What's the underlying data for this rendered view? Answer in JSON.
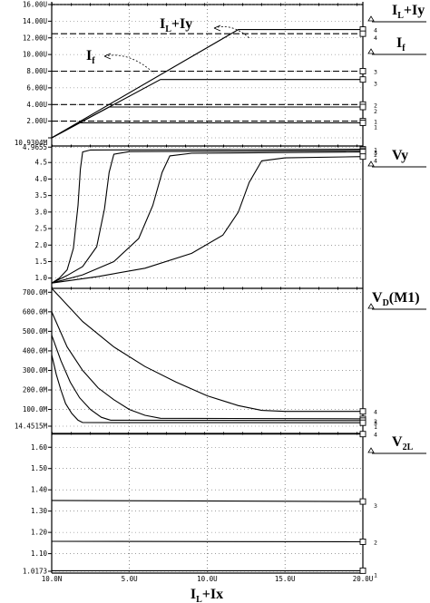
{
  "chart_data": {
    "type": "line",
    "xlabel": "I_L+Ix",
    "x_axis": {
      "range": [
        1e-08,
        2e-05
      ],
      "ticks": [
        {
          "v": 1e-08,
          "label": "10.0N"
        },
        {
          "v": 5e-06,
          "label": "5.0U"
        },
        {
          "v": 1e-05,
          "label": "10.0U"
        },
        {
          "v": 1.5e-05,
          "label": "15.0U"
        },
        {
          "v": 2e-05,
          "label": "20.0U"
        }
      ]
    },
    "panels": [
      {
        "id": "current",
        "labels": [
          {
            "main": "I",
            "sub": "L",
            "rest": "+Iy"
          },
          {
            "main": "I",
            "sub": "f",
            "rest": ""
          }
        ],
        "annotations": [
          {
            "main": "I",
            "sub": "L",
            "rest": "+Iy"
          },
          {
            "main": "I",
            "sub": "f",
            "rest": ""
          }
        ],
        "ylim": [
          0,
          1.6e-05
        ],
        "yticks": [
          {
            "v": 0,
            "label": ""
          },
          {
            "v": 2e-06,
            "label": "2.00U"
          },
          {
            "v": 4e-06,
            "label": "4.00U"
          },
          {
            "v": 6e-06,
            "label": "6.00U"
          },
          {
            "v": 8e-06,
            "label": "8.00U"
          },
          {
            "v": 1e-05,
            "label": "10.00U"
          },
          {
            "v": 1.2e-05,
            "label": "12.00U"
          },
          {
            "v": 1.4e-05,
            "label": "14.00U"
          },
          {
            "v": 1.6e-05,
            "label": "16.00U"
          }
        ],
        "series": [
          {
            "marker": "4",
            "style": "solid",
            "points": [
              [
                1e-08,
                0
              ],
              [
                1.2e-05,
                1.3e-05
              ],
              [
                2e-05,
                1.3e-05
              ]
            ]
          },
          {
            "marker": "4",
            "style": "dashed",
            "points": [
              [
                1e-08,
                1.25e-05
              ],
              [
                2e-05,
                1.25e-05
              ]
            ]
          },
          {
            "marker": "3",
            "style": "dashed",
            "points": [
              [
                1e-08,
                8e-06
              ],
              [
                2e-05,
                8e-06
              ]
            ]
          },
          {
            "marker": "3",
            "style": "solid",
            "points": [
              [
                1e-08,
                0
              ],
              [
                7e-06,
                7e-06
              ],
              [
                2e-05,
                7e-06
              ]
            ]
          },
          {
            "marker": "2",
            "style": "dashed",
            "points": [
              [
                1e-08,
                4e-06
              ],
              [
                2e-05,
                4e-06
              ]
            ]
          },
          {
            "marker": "2",
            "style": "solid",
            "points": [
              [
                1e-08,
                0
              ],
              [
                3.7e-06,
                3.7e-06
              ],
              [
                2e-05,
                3.7e-06
              ]
            ]
          },
          {
            "marker": "1",
            "style": "dashed",
            "points": [
              [
                1e-08,
                2e-06
              ],
              [
                2e-05,
                2e-06
              ]
            ]
          },
          {
            "marker": "1",
            "style": "solid",
            "points": [
              [
                1e-08,
                0
              ],
              [
                1.8e-06,
                1.8e-06
              ],
              [
                2e-05,
                1.8e-06
              ]
            ]
          }
        ]
      },
      {
        "id": "vy",
        "labels": [
          {
            "main": "Vy",
            "sub": "",
            "rest": ""
          }
        ],
        "ylim": [
          0.8,
          5.0
        ],
        "yticks": [
          {
            "v": 1.0,
            "label": "1.0"
          },
          {
            "v": 1.5,
            "label": "1.5"
          },
          {
            "v": 2.0,
            "label": "2.0"
          },
          {
            "v": 2.5,
            "label": "2.5"
          },
          {
            "v": 3.0,
            "label": "3.0"
          },
          {
            "v": 3.5,
            "label": "3.5"
          },
          {
            "v": 4.0,
            "label": "4.0"
          },
          {
            "v": 4.5,
            "label": "4.5"
          },
          {
            "v": 4.9655,
            "label": "4.9655"
          }
        ],
        "extra_label": "10.9304M",
        "series": [
          {
            "marker": "1",
            "points": [
              [
                1e-08,
                0.85
              ],
              [
                5e-07,
                1.0
              ],
              [
                1e-06,
                1.25
              ],
              [
                1.4e-06,
                1.9
              ],
              [
                1.7e-06,
                3.2
              ],
              [
                1.85e-06,
                4.3
              ],
              [
                2e-06,
                4.82
              ],
              [
                2.5e-06,
                4.88
              ],
              [
                2e-05,
                4.9
              ]
            ]
          },
          {
            "marker": "2",
            "points": [
              [
                1e-08,
                0.85
              ],
              [
                1e-06,
                1.08
              ],
              [
                2e-06,
                1.35
              ],
              [
                2.9e-06,
                1.95
              ],
              [
                3.4e-06,
                3.1
              ],
              [
                3.7e-06,
                4.2
              ],
              [
                4e-06,
                4.75
              ],
              [
                5e-06,
                4.83
              ],
              [
                2e-05,
                4.86
              ]
            ]
          },
          {
            "marker": "3",
            "points": [
              [
                1e-08,
                0.85
              ],
              [
                2e-06,
                1.1
              ],
              [
                4e-06,
                1.5
              ],
              [
                5.6e-06,
                2.2
              ],
              [
                6.5e-06,
                3.2
              ],
              [
                7.1e-06,
                4.2
              ],
              [
                7.6e-06,
                4.7
              ],
              [
                9e-06,
                4.78
              ],
              [
                2e-05,
                4.82
              ]
            ]
          },
          {
            "marker": "4",
            "points": [
              [
                1e-08,
                0.85
              ],
              [
                3e-06,
                1.05
              ],
              [
                6e-06,
                1.3
              ],
              [
                9e-06,
                1.75
              ],
              [
                1.1e-05,
                2.3
              ],
              [
                1.2e-05,
                3.0
              ],
              [
                1.27e-05,
                3.9
              ],
              [
                1.35e-05,
                4.55
              ],
              [
                1.5e-05,
                4.64
              ],
              [
                2e-05,
                4.68
              ]
            ]
          }
        ]
      },
      {
        "id": "vd",
        "labels": [
          {
            "main": "V",
            "sub": "D",
            "rest": "(M1)"
          }
        ],
        "ylim": [
          0.0144515,
          0.72
        ],
        "yticks": [
          {
            "v": 0.0144515,
            "label": "14.4515M"
          },
          {
            "v": 0.1,
            "label": "100.0M"
          },
          {
            "v": 0.2,
            "label": "200.0M"
          },
          {
            "v": 0.3,
            "label": "300.0M"
          },
          {
            "v": 0.4,
            "label": "400.0M"
          },
          {
            "v": 0.5,
            "label": "500.0M"
          },
          {
            "v": 0.6,
            "label": "600.0M"
          },
          {
            "v": 0.7,
            "label": "700.0M"
          }
        ],
        "series": [
          {
            "marker": "4",
            "points": [
              [
                1e-08,
                0.72
              ],
              [
                2e-06,
                0.55
              ],
              [
                4e-06,
                0.42
              ],
              [
                6e-06,
                0.32
              ],
              [
                8e-06,
                0.24
              ],
              [
                1e-05,
                0.17
              ],
              [
                1.2e-05,
                0.12
              ],
              [
                1.35e-05,
                0.095
              ],
              [
                1.5e-05,
                0.09
              ],
              [
                2e-05,
                0.09
              ]
            ]
          },
          {
            "marker": "3",
            "points": [
              [
                1e-08,
                0.6
              ],
              [
                1e-06,
                0.42
              ],
              [
                2e-06,
                0.3
              ],
              [
                3e-06,
                0.21
              ],
              [
                4e-06,
                0.15
              ],
              [
                5e-06,
                0.1
              ],
              [
                6e-06,
                0.07
              ],
              [
                7e-06,
                0.055
              ],
              [
                2e-05,
                0.052
              ]
            ]
          },
          {
            "marker": "2",
            "points": [
              [
                1e-08,
                0.48
              ],
              [
                6e-07,
                0.35
              ],
              [
                1.2e-06,
                0.24
              ],
              [
                1.8e-06,
                0.16
              ],
              [
                2.5e-06,
                0.1
              ],
              [
                3.2e-06,
                0.06
              ],
              [
                3.8e-06,
                0.045
              ],
              [
                2e-05,
                0.043
              ]
            ]
          },
          {
            "marker": "1",
            "points": [
              [
                1e-08,
                0.38
              ],
              [
                3e-07,
                0.28
              ],
              [
                6e-07,
                0.2
              ],
              [
                9e-07,
                0.13
              ],
              [
                1.3e-06,
                0.08
              ],
              [
                1.7e-06,
                0.045
              ],
              [
                2e-06,
                0.033
              ],
              [
                2e-05,
                0.032
              ]
            ]
          }
        ]
      },
      {
        "id": "v2l",
        "labels": [
          {
            "main": "V",
            "sub": "2L",
            "rest": ""
          }
        ],
        "ylim": [
          1.0173,
          1.665
        ],
        "yticks": [
          {
            "v": 1.0173,
            "label": "1.0173"
          },
          {
            "v": 1.1,
            "label": "1.10"
          },
          {
            "v": 1.2,
            "label": "1.20"
          },
          {
            "v": 1.3,
            "label": "1.30"
          },
          {
            "v": 1.4,
            "label": "1.40"
          },
          {
            "v": 1.5,
            "label": "1.50"
          },
          {
            "v": 1.6,
            "label": "1.60"
          }
        ],
        "series": [
          {
            "marker": "4",
            "points": [
              [
                1e-08,
                1.662
              ],
              [
                2e-05,
                1.662
              ]
            ]
          },
          {
            "marker": "3",
            "points": [
              [
                1e-08,
                1.35
              ],
              [
                2e-05,
                1.345
              ]
            ]
          },
          {
            "marker": "2",
            "points": [
              [
                1e-08,
                1.158
              ],
              [
                2e-05,
                1.156
              ]
            ]
          },
          {
            "marker": "1",
            "points": [
              [
                1e-08,
                1.02
              ],
              [
                2e-05,
                1.02
              ]
            ]
          }
        ]
      }
    ]
  }
}
